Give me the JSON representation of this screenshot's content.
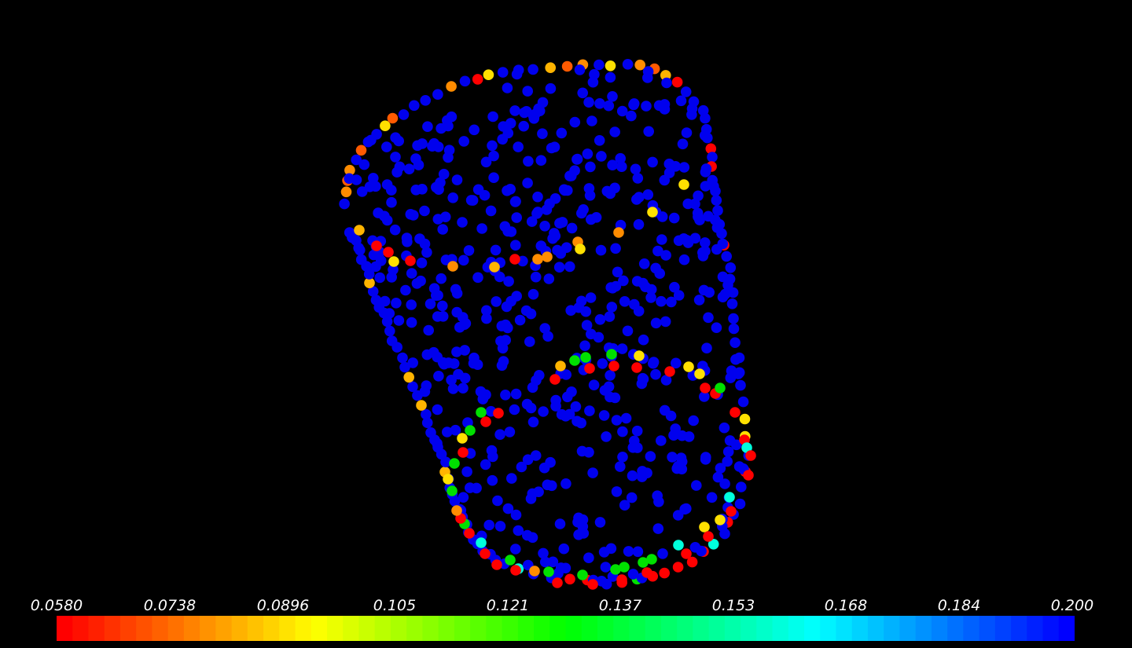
{
  "scalar_bar": {
    "min": 0.058,
    "max": 0.2,
    "labels": [
      "0.0580",
      "0.0738",
      "0.0896",
      "0.105",
      "0.121",
      "0.137",
      "0.153",
      "0.168",
      "0.184",
      "0.200"
    ],
    "colormap": [
      "#ff0000",
      "#ffff00",
      "#00ff00",
      "#00ffff",
      "#0000ff"
    ],
    "segments": 64
  },
  "colors": {
    "background": "#000000",
    "point_colors": [
      "#0000ee",
      "#ff0000",
      "#ff5a00",
      "#ff8c00",
      "#ffb400",
      "#ffe000",
      "#00e000",
      "#00ffdc"
    ]
  }
}
